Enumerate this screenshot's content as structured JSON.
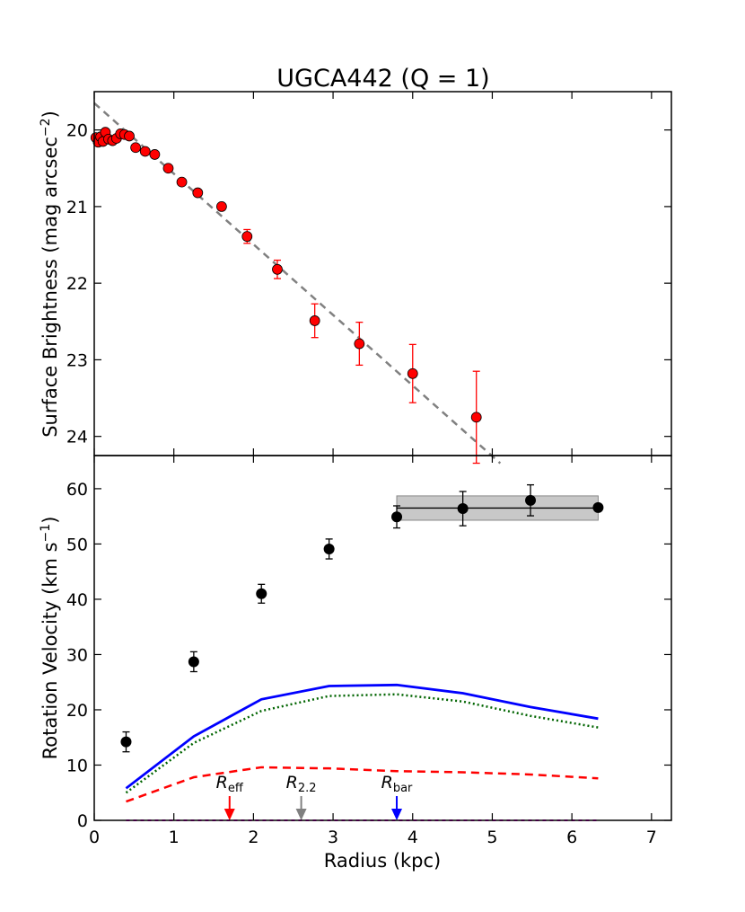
{
  "title": "UGCA442 (Q = 1)",
  "colors": {
    "sb_points": "#ff0000",
    "sb_fit": "#808080",
    "vrot_points": "#000000",
    "total_model": "#0000ff",
    "gas_model": "#006400",
    "disk_model": "#ff0000",
    "bulge_model": "#ff00ff",
    "flat_band": "#c8c8c8",
    "r_eff": "#ff0000",
    "r_22": "#808080",
    "r_bar": "#0000ff"
  },
  "chart_data": [
    {
      "id": "surface-brightness",
      "type": "scatter",
      "ylabel": "Surface Brightness (mag arcsec",
      "ylabel_sup": "−2",
      "ylabel_end": ")",
      "xlim": [
        0,
        7.25
      ],
      "ylim": [
        24.25,
        19.5
      ],
      "yticks": [
        20,
        21,
        22,
        23,
        24
      ],
      "ytick_labels": [
        "20",
        "21",
        "22",
        "23",
        "24"
      ],
      "xticks": [
        0,
        1,
        2,
        3,
        4,
        5,
        6,
        7
      ],
      "points": [
        {
          "x": 0.02,
          "y": 20.1,
          "err": 0
        },
        {
          "x": 0.05,
          "y": 20.16,
          "err": 0
        },
        {
          "x": 0.08,
          "y": 20.09,
          "err": 0
        },
        {
          "x": 0.11,
          "y": 20.15,
          "err": 0
        },
        {
          "x": 0.14,
          "y": 20.03,
          "err": 0
        },
        {
          "x": 0.18,
          "y": 20.12,
          "err": 0
        },
        {
          "x": 0.23,
          "y": 20.14,
          "err": 0
        },
        {
          "x": 0.28,
          "y": 20.11,
          "err": 0
        },
        {
          "x": 0.33,
          "y": 20.05,
          "err": 0
        },
        {
          "x": 0.38,
          "y": 20.06,
          "err": 0
        },
        {
          "x": 0.44,
          "y": 20.08,
          "err": 0
        },
        {
          "x": 0.52,
          "y": 20.23,
          "err": 0
        },
        {
          "x": 0.64,
          "y": 20.28,
          "err": 0
        },
        {
          "x": 0.76,
          "y": 20.32,
          "err": 0
        },
        {
          "x": 0.93,
          "y": 20.5,
          "err": 0
        },
        {
          "x": 1.1,
          "y": 20.68,
          "err": 0
        },
        {
          "x": 1.3,
          "y": 20.82,
          "err": 0
        },
        {
          "x": 1.6,
          "y": 21.0,
          "err": 0
        },
        {
          "x": 1.92,
          "y": 21.39,
          "err": 0.09
        },
        {
          "x": 2.3,
          "y": 21.82,
          "err": 0.12
        },
        {
          "x": 2.77,
          "y": 22.49,
          "err": 0.22
        },
        {
          "x": 3.33,
          "y": 22.79,
          "err": 0.28
        },
        {
          "x": 4.0,
          "y": 23.18,
          "err": 0.38
        },
        {
          "x": 4.8,
          "y": 23.75,
          "err": 0.6
        }
      ],
      "fit_line": {
        "x": [
          0.0,
          5.1
        ],
        "y": [
          19.65,
          24.35
        ]
      }
    },
    {
      "id": "rotation-curve",
      "type": "line",
      "xlabel": "Radius (kpc)",
      "ylabel": "Rotation Velocity (km s",
      "ylabel_sup": "−1",
      "ylabel_end": ")",
      "xlim": [
        0,
        7.25
      ],
      "ylim": [
        0,
        66
      ],
      "xticks": [
        0,
        1,
        2,
        3,
        4,
        5,
        6,
        7
      ],
      "xtick_labels": [
        "0",
        "1",
        "2",
        "3",
        "4",
        "5",
        "6",
        "7"
      ],
      "yticks": [
        0,
        10,
        20,
        30,
        40,
        50,
        60
      ],
      "ytick_labels": [
        "0",
        "10",
        "20",
        "30",
        "40",
        "50",
        "60"
      ],
      "points": [
        {
          "x": 0.4,
          "y": 14.2,
          "err": 1.8
        },
        {
          "x": 1.25,
          "y": 28.7,
          "err": 1.8
        },
        {
          "x": 2.1,
          "y": 41.0,
          "err": 1.7
        },
        {
          "x": 2.95,
          "y": 49.1,
          "err": 1.8
        },
        {
          "x": 3.8,
          "y": 54.9,
          "err": 2.0
        },
        {
          "x": 4.63,
          "y": 56.4,
          "err": 3.1
        },
        {
          "x": 5.48,
          "y": 57.9,
          "err": 2.8
        },
        {
          "x": 6.33,
          "y": 56.6,
          "err": 0
        }
      ],
      "flat_region": {
        "x": [
          3.8,
          6.33
        ],
        "y": 56.5,
        "y_low": 54.3,
        "y_high": 58.7
      },
      "series": [
        {
          "name": "total",
          "style": "solid",
          "x": [
            0.4,
            1.25,
            2.1,
            2.95,
            3.8,
            4.63,
            5.48,
            6.33
          ],
          "y": [
            5.8,
            15.2,
            21.9,
            24.3,
            24.5,
            23.0,
            20.5,
            18.4
          ]
        },
        {
          "name": "gas",
          "style": "dotted",
          "x": [
            0.4,
            1.25,
            2.1,
            2.95,
            3.8,
            4.63,
            5.48,
            6.33
          ],
          "y": [
            5.0,
            14.0,
            19.8,
            22.5,
            22.8,
            21.5,
            18.9,
            16.8
          ]
        },
        {
          "name": "disk",
          "style": "dashed",
          "x": [
            0.4,
            1.25,
            2.1,
            2.95,
            3.8,
            4.63,
            5.48,
            6.33
          ],
          "y": [
            3.4,
            7.8,
            9.6,
            9.4,
            8.9,
            8.7,
            8.3,
            7.6
          ]
        },
        {
          "name": "bulge",
          "style": "dashed",
          "x": [
            0.4,
            6.33
          ],
          "y": [
            0.0,
            0.0
          ]
        }
      ],
      "markers": [
        {
          "name": "R_eff",
          "base": "R",
          "sub": "eff",
          "x": 1.7,
          "color_key": "r_eff"
        },
        {
          "name": "R_2.2",
          "base": "R",
          "sub": "2.2",
          "x": 2.6,
          "color_key": "r_22"
        },
        {
          "name": "R_bar",
          "base": "R",
          "sub": "bar",
          "x": 3.8,
          "color_key": "r_bar"
        }
      ]
    }
  ]
}
